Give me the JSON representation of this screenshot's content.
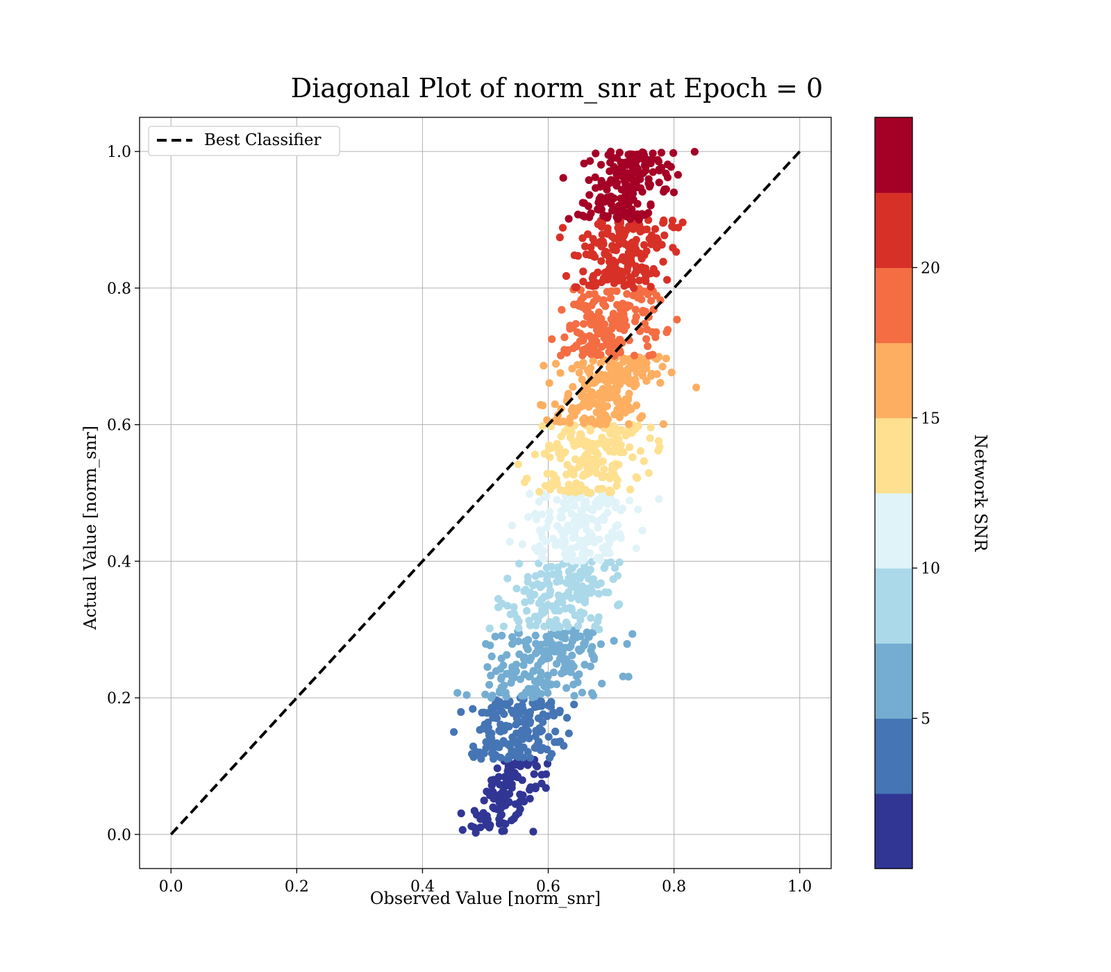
{
  "chart_data": {
    "type": "scatter",
    "title": "Diagonal Plot of norm_snr at Epoch = 0",
    "xlabel": "Observed Value [norm_snr]",
    "ylabel": "Actual Value [norm_snr]",
    "xlim": [
      -0.05,
      1.05
    ],
    "ylim": [
      -0.05,
      1.05
    ],
    "xticks": [
      "0.0",
      "0.2",
      "0.4",
      "0.6",
      "0.8",
      "1.0"
    ],
    "yticks": [
      "0.0",
      "0.2",
      "0.4",
      "0.6",
      "0.8",
      "1.0"
    ],
    "grid": true,
    "legend": {
      "position": "top-left",
      "entries": [
        "Best Classifier"
      ]
    },
    "reference_line": {
      "name": "Best Classifier",
      "style": "dashed",
      "color": "#000000",
      "x": [
        0,
        1
      ],
      "y": [
        0,
        1
      ]
    },
    "colorbar": {
      "label": "Network SNR",
      "min": 0,
      "max": 25,
      "ticks": [
        "5",
        "10",
        "15",
        "20"
      ],
      "bands": [
        "#313695",
        "#4575b4",
        "#74add1",
        "#abd9e9",
        "#e0f3f8",
        "#fee090",
        "#fdae61",
        "#f46d43",
        "#d73027",
        "#a50026"
      ]
    },
    "bands": [
      {
        "color": "#313695",
        "y": [
          0.0,
          0.11
        ],
        "x_center": 0.535,
        "x_spread": 0.045,
        "n": 120
      },
      {
        "color": "#4575b4",
        "y": [
          0.11,
          0.2
        ],
        "x_center": 0.545,
        "x_spread": 0.07,
        "n": 170
      },
      {
        "color": "#74add1",
        "y": [
          0.2,
          0.3
        ],
        "x_center": 0.59,
        "x_spread": 0.085,
        "n": 200
      },
      {
        "color": "#abd9e9",
        "y": [
          0.3,
          0.4
        ],
        "x_center": 0.62,
        "x_spread": 0.085,
        "n": 170
      },
      {
        "color": "#e0f3f8",
        "y": [
          0.4,
          0.5
        ],
        "x_center": 0.65,
        "x_spread": 0.08,
        "n": 170
      },
      {
        "color": "#fee090",
        "y": [
          0.5,
          0.6
        ],
        "x_center": 0.665,
        "x_spread": 0.075,
        "n": 190
      },
      {
        "color": "#fdae61",
        "y": [
          0.6,
          0.7
        ],
        "x_center": 0.69,
        "x_spread": 0.075,
        "n": 210
      },
      {
        "color": "#f46d43",
        "y": [
          0.7,
          0.8
        ],
        "x_center": 0.7,
        "x_spread": 0.07,
        "n": 180
      },
      {
        "color": "#d73027",
        "y": [
          0.8,
          0.9
        ],
        "x_center": 0.72,
        "x_spread": 0.065,
        "n": 200
      },
      {
        "color": "#a50026",
        "y": [
          0.9,
          1.0
        ],
        "x_center": 0.725,
        "x_spread": 0.06,
        "n": 200
      }
    ]
  }
}
